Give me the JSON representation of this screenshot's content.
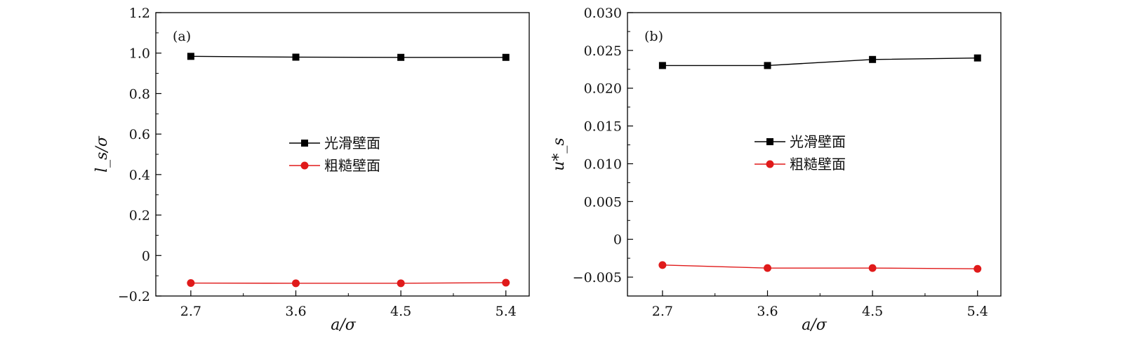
{
  "chart_data": [
    {
      "type": "line",
      "panel_label": "(a)",
      "xlabel": "a/σ",
      "ylabel": "l_s/σ",
      "x": [
        2.7,
        3.6,
        4.5,
        5.4
      ],
      "x_tick_labels": [
        "2.7",
        "3.6",
        "4.5",
        "5.4"
      ],
      "xlim": [
        2.4,
        5.6
      ],
      "ylim": [
        -0.2,
        1.2
      ],
      "y_ticks": [
        -0.2,
        0,
        0.2,
        0.4,
        0.6,
        0.8,
        1.0,
        1.2
      ],
      "y_tick_labels": [
        "−0.2",
        "0",
        "0.2",
        "0.4",
        "0.6",
        "0.8",
        "1.0",
        "1.2"
      ],
      "grid": false,
      "legend_position": "center",
      "series": [
        {
          "name": "光滑壁面",
          "color": "#000000",
          "marker": "square",
          "values": [
            0.984,
            0.98,
            0.979,
            0.979
          ]
        },
        {
          "name": "粗糙壁面",
          "color": "#e01a1a",
          "marker": "circle",
          "values": [
            -0.136,
            -0.137,
            -0.137,
            -0.134
          ]
        }
      ]
    },
    {
      "type": "line",
      "panel_label": "(b)",
      "xlabel": "a/σ",
      "ylabel": "u*_s",
      "x": [
        2.7,
        3.6,
        4.5,
        5.4
      ],
      "x_tick_labels": [
        "2.7",
        "3.6",
        "4.5",
        "5.4"
      ],
      "xlim": [
        2.4,
        5.6
      ],
      "ylim": [
        -0.0075,
        0.03
      ],
      "y_ticks": [
        -0.005,
        0,
        0.005,
        0.01,
        0.015,
        0.02,
        0.025,
        0.03
      ],
      "y_tick_labels": [
        "−0.005",
        "0",
        "0.005",
        "0.010",
        "0.015",
        "0.020",
        "0.025",
        "0.030"
      ],
      "grid": false,
      "legend_position": "center",
      "series": [
        {
          "name": "光滑壁面",
          "color": "#000000",
          "marker": "square",
          "values": [
            0.023,
            0.023,
            0.0238,
            0.024
          ]
        },
        {
          "name": "粗糙壁面",
          "color": "#e01a1a",
          "marker": "circle",
          "values": [
            -0.0034,
            -0.0038,
            -0.0038,
            -0.0039
          ]
        }
      ]
    }
  ]
}
